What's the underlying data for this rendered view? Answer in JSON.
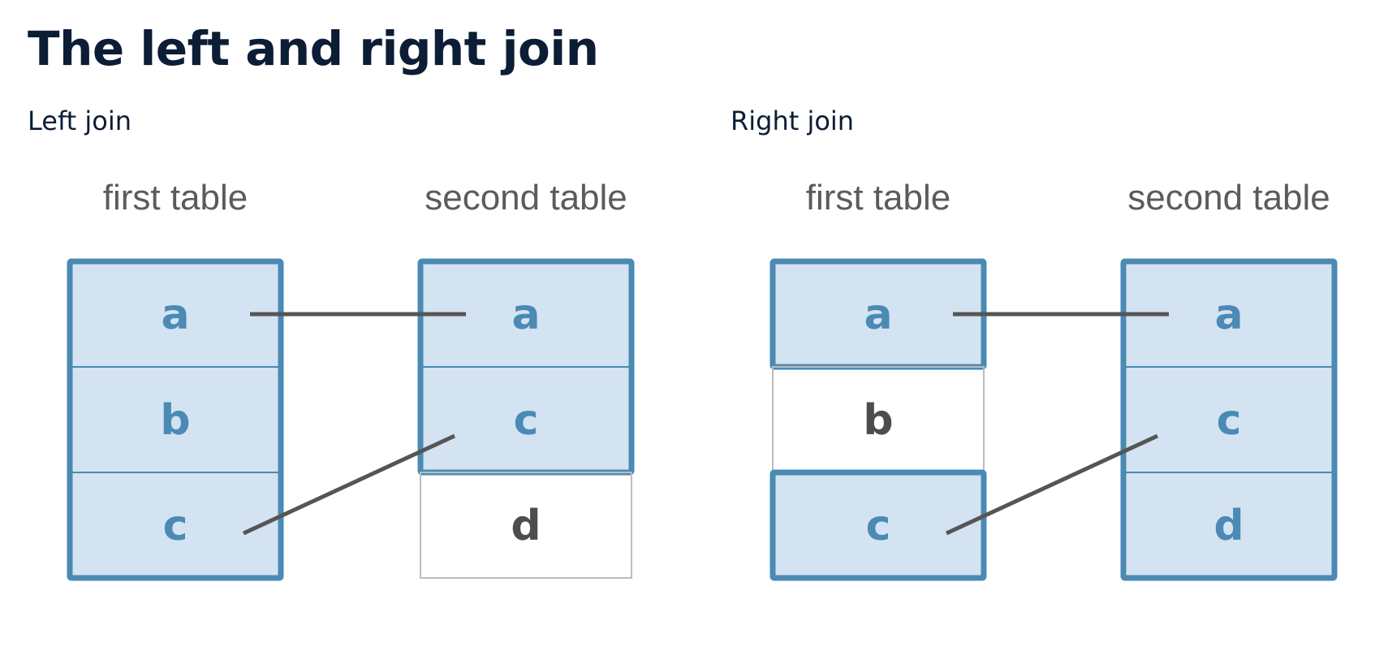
{
  "title": "The left and right join",
  "colors": {
    "title_text": "#0c1d36",
    "matched_fill": "#d4e3f1",
    "matched_border": "#4a8ab4",
    "matched_text": "#4a8ab4",
    "unmatched_fill": "#ffffff",
    "unmatched_border": "#bdbdbd",
    "unmatched_text": "#4d4d4d",
    "connector": "#555555"
  },
  "joins": [
    {
      "label": "Left join",
      "first_table": {
        "heading": "first table",
        "rows": [
          {
            "value": "a",
            "matched": true
          },
          {
            "value": "b",
            "matched": true
          },
          {
            "value": "c",
            "matched": true
          }
        ]
      },
      "second_table": {
        "heading": "second table",
        "rows": [
          {
            "value": "a",
            "matched": true
          },
          {
            "value": "c",
            "matched": true
          },
          {
            "value": "d",
            "matched": false
          }
        ]
      },
      "links": [
        {
          "from": "a",
          "to": "a"
        },
        {
          "from": "c",
          "to": "c"
        }
      ]
    },
    {
      "label": "Right join",
      "first_table": {
        "heading": "first table",
        "rows": [
          {
            "value": "a",
            "matched": true
          },
          {
            "value": "b",
            "matched": false
          },
          {
            "value": "c",
            "matched": true
          }
        ]
      },
      "second_table": {
        "heading": "second table",
        "rows": [
          {
            "value": "a",
            "matched": true
          },
          {
            "value": "c",
            "matched": true
          },
          {
            "value": "d",
            "matched": true
          }
        ]
      },
      "links": [
        {
          "from": "a",
          "to": "a"
        },
        {
          "from": "c",
          "to": "c"
        }
      ]
    }
  ]
}
